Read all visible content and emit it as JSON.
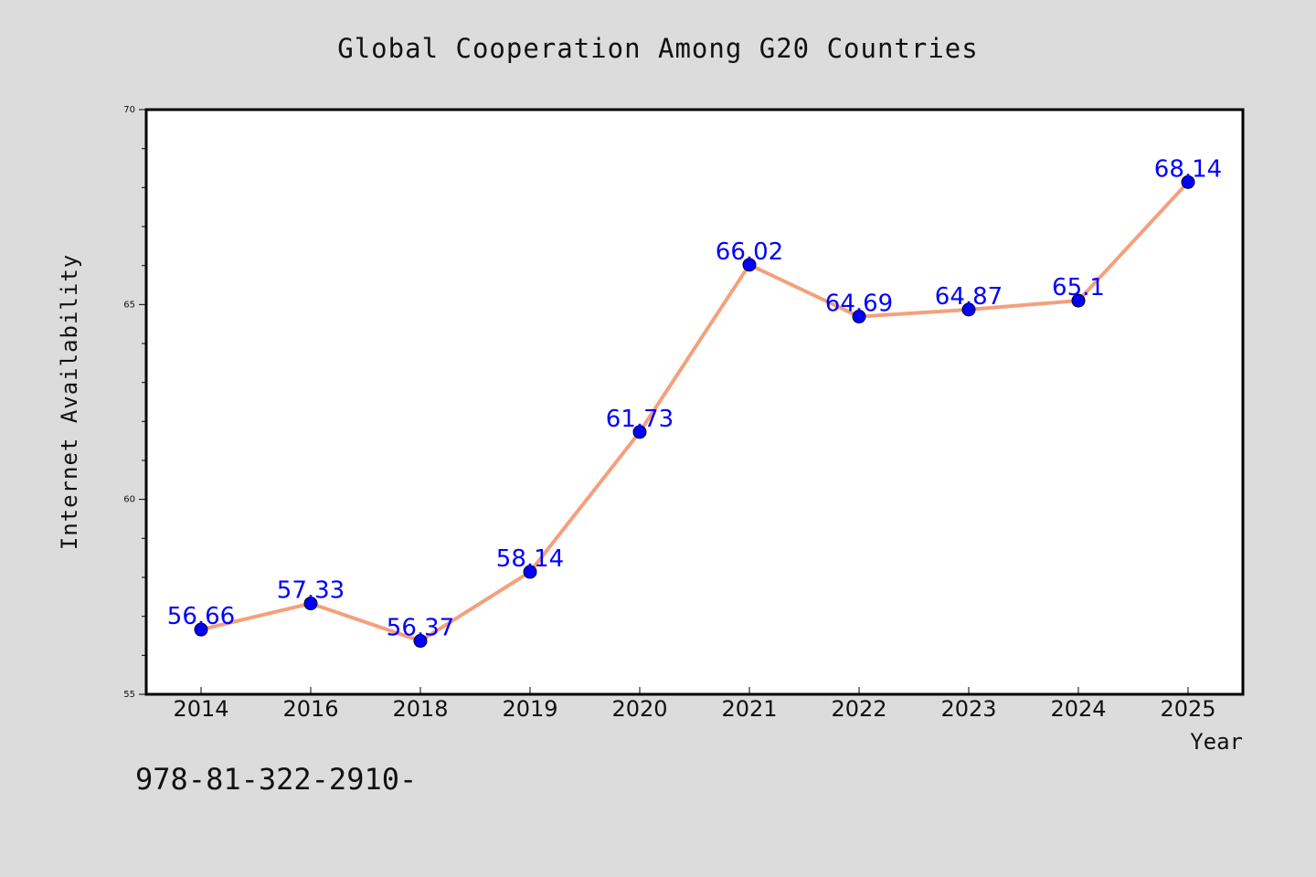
{
  "chart_data": {
    "type": "line",
    "title": "Global Cooperation Among G20 Countries",
    "xlabel": "Year",
    "ylabel": "Internet Availability",
    "categories": [
      "2014",
      "2016",
      "2018",
      "2019",
      "2020",
      "2021",
      "2022",
      "2023",
      "2024",
      "2025"
    ],
    "values": [
      56.66,
      57.33,
      56.37,
      58.14,
      61.73,
      66.02,
      64.69,
      64.87,
      65.1,
      68.14
    ],
    "data_labels": [
      "56.66",
      "57.33",
      "56.37",
      "58.14",
      "61.73",
      "66.02",
      "64.69",
      "64.87",
      "65.1",
      "68.14"
    ],
    "ylim": [
      55,
      70
    ],
    "yticks": [
      55,
      60,
      65,
      70
    ],
    "ytick_labels": [
      "55",
      "60",
      "65",
      "70"
    ],
    "grid": false,
    "legend": "none",
    "line_color": "#f4a07c",
    "marker_color": "#0000ff",
    "label_color": "#0000ff"
  },
  "annotation": "978-81-322-2910-"
}
